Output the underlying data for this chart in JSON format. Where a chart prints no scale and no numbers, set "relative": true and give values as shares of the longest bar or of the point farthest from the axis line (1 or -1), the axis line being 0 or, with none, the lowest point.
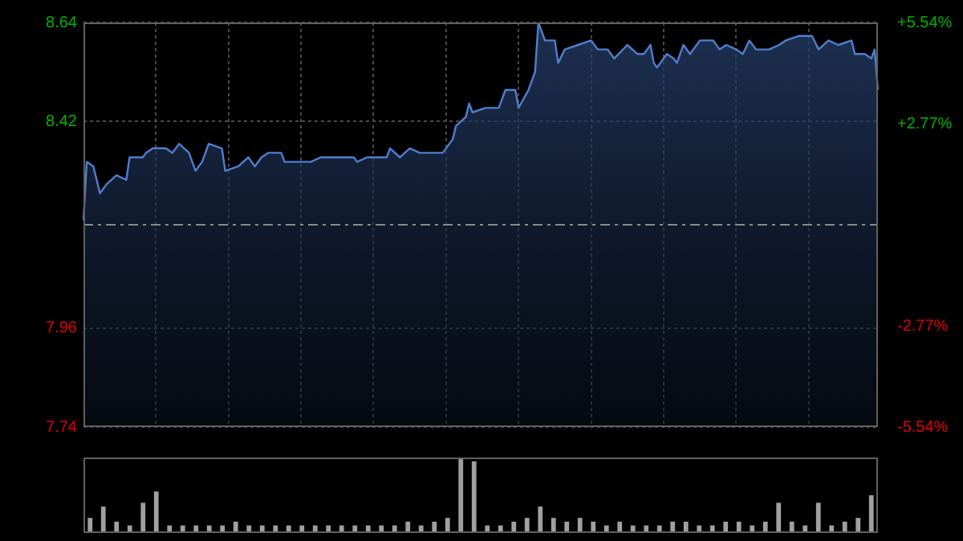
{
  "chart_data": [
    {
      "type": "area",
      "color": "#4f7fcf",
      "categories": [
        null,
        null,
        null,
        null,
        null,
        null,
        null,
        null,
        null,
        null,
        null,
        null,
        null,
        null,
        null,
        null,
        null,
        null,
        null,
        null,
        null,
        null,
        null,
        null,
        null,
        null,
        null,
        null,
        null,
        null,
        null,
        null,
        null,
        null,
        null,
        null,
        null,
        null,
        null,
        null,
        null,
        null,
        null,
        null,
        null,
        null,
        null,
        null,
        null,
        null,
        null,
        null,
        null,
        null,
        null,
        null,
        null,
        null,
        null,
        null,
        null,
        null,
        null,
        null,
        null,
        null,
        null,
        null,
        null,
        null,
        null,
        null,
        null,
        null,
        null,
        null,
        null,
        null,
        null,
        null,
        null,
        null,
        null,
        null,
        null,
        null,
        null,
        null,
        null,
        null,
        null,
        null,
        null,
        null,
        null,
        null,
        null,
        null,
        null,
        null,
        null,
        null,
        null,
        null,
        null,
        null,
        null,
        null,
        null,
        null,
        null,
        null,
        null,
        null,
        null,
        null,
        null,
        null,
        null,
        null,
        null,
        null,
        null,
        null,
        null,
        null,
        null,
        null,
        null,
        null,
        null,
        null,
        null,
        null,
        null,
        null,
        null,
        null,
        null,
        null,
        null,
        null,
        null,
        null,
        null,
        null,
        null,
        null,
        null,
        null,
        null,
        null,
        null,
        null,
        null,
        null,
        null,
        null,
        null,
        null,
        null,
        null,
        null,
        null,
        null,
        null,
        null,
        null,
        null,
        null,
        null,
        null,
        null,
        null,
        null,
        null,
        null,
        null,
        null,
        null,
        null,
        null,
        null,
        null,
        null,
        null,
        null,
        null,
        null,
        null,
        null,
        null,
        null,
        null,
        null,
        null,
        null,
        null,
        null,
        null,
        null,
        null,
        null,
        null,
        null,
        null,
        null,
        null,
        null,
        null,
        null,
        null,
        null,
        null,
        null,
        null,
        null,
        null,
        null,
        null,
        null,
        null,
        null,
        null,
        null,
        null,
        null,
        null,
        null,
        null,
        null,
        null,
        null,
        null,
        null,
        null,
        null,
        null,
        null,
        null,
        null,
        null
      ],
      "values": [
        8.2,
        8.33,
        null,
        8.32,
        null,
        8.26,
        null,
        8.28,
        null,
        null,
        8.3,
        null,
        null,
        8.29,
        8.34,
        null,
        null,
        null,
        8.34,
        8.35,
        null,
        8.36,
        null,
        null,
        null,
        8.36,
        null,
        8.35,
        null,
        8.37,
        null,
        null,
        8.35,
        null,
        8.31,
        null,
        8.33,
        null,
        8.37,
        null,
        null,
        null,
        8.36,
        8.31,
        null,
        null,
        null,
        8.32,
        null,
        null,
        8.34,
        null,
        8.32,
        null,
        8.34,
        null,
        8.35,
        null,
        null,
        null,
        8.35,
        8.33,
        null,
        null,
        null,
        8.33,
        null,
        null,
        null,
        8.33,
        null,
        null,
        8.34,
        null,
        null,
        null,
        null,
        8.34,
        null,
        null,
        null,
        null,
        8.34,
        8.33,
        null,
        null,
        8.34,
        null,
        null,
        null,
        null,
        null,
        8.34,
        8.36,
        null,
        null,
        8.34,
        null,
        null,
        8.36,
        null,
        null,
        8.35,
        null,
        null,
        null,
        null,
        null,
        null,
        8.35,
        null,
        null,
        8.38,
        8.41,
        null,
        null,
        8.43,
        8.46,
        8.44,
        null,
        null,
        null,
        8.45,
        null,
        null,
        null,
        8.45,
        null,
        8.49,
        null,
        null,
        8.49,
        8.45,
        null,
        null,
        8.49,
        null,
        8.53,
        8.64,
        null,
        8.6,
        null,
        null,
        8.6,
        8.55,
        null,
        8.58,
        null,
        null,
        null,
        8.59,
        null,
        null,
        null,
        8.6,
        null,
        8.58,
        null,
        null,
        8.58,
        null,
        8.56,
        null,
        null,
        null,
        8.59,
        null,
        null,
        8.57,
        null,
        8.57,
        null,
        8.59,
        8.55,
        8.54,
        null,
        null,
        8.57,
        null,
        8.56,
        8.55,
        null,
        8.59,
        null,
        8.57,
        null,
        null,
        8.6,
        null,
        null,
        null,
        8.6,
        null,
        8.58,
        null,
        8.59,
        null,
        null,
        8.58,
        null,
        8.57,
        null,
        8.6,
        null,
        8.58,
        null,
        null,
        null,
        8.58,
        null,
        null,
        8.59,
        null,
        8.6,
        null,
        null,
        null,
        8.61,
        null,
        null,
        null,
        8.61,
        null,
        8.58,
        null,
        null,
        8.6,
        null,
        null,
        8.59,
        null,
        null,
        null,
        8.6,
        8.57,
        null,
        null,
        8.57,
        null,
        8.56,
        8.58,
        8.49
      ],
      "ylim": [
        7.74,
        8.64
      ],
      "yticks": [
        7.74,
        7.96,
        8.42,
        8.64
      ],
      "y2lim": [
        -5.54,
        5.54
      ],
      "y2ticks": [
        {
          "value": -5.54,
          "label": "-5.54%"
        },
        {
          "value": -2.77,
          "label": "-2.77%"
        },
        {
          "value": 2.77,
          "label": "+2.77%"
        },
        {
          "value": 5.54,
          "label": "+5.54%"
        }
      ],
      "ref_lines": [
        {
          "axis": "y",
          "value": 8.19,
          "color": "#8a8a8a",
          "line_style": "dashed"
        }
      ],
      "grid": true,
      "legend": false,
      "marker": "none",
      "line_style": "solid"
    },
    {
      "type": "bar",
      "relative": true,
      "color": "#a0a0a0",
      "categories": [
        null,
        null,
        null,
        null,
        null,
        null,
        null,
        null,
        null,
        null,
        null,
        null,
        null,
        null,
        null,
        null,
        null,
        null,
        null,
        null,
        null,
        null,
        null,
        null,
        null,
        null,
        null,
        null,
        null,
        null,
        null,
        null,
        null,
        null,
        null,
        null,
        null,
        null,
        null,
        null,
        null,
        null,
        null,
        null,
        null,
        null,
        null,
        null,
        null,
        null,
        null,
        null,
        null,
        null,
        null,
        null,
        null,
        null,
        null,
        null
      ],
      "values": [
        0.2,
        0.35,
        0.15,
        0.1,
        0.4,
        0.55,
        0.1,
        0.1,
        0.1,
        0.1,
        0.1,
        0.15,
        0.1,
        0.1,
        0.1,
        0.1,
        0.1,
        0.1,
        0.1,
        0.1,
        0.1,
        0.1,
        0.1,
        0.1,
        0.15,
        0.1,
        0.15,
        0.2,
        1,
        0.95,
        0.1,
        0.1,
        0.15,
        0.2,
        0.35,
        0.2,
        0.15,
        0.2,
        0.15,
        0.1,
        0.15,
        0.1,
        0.1,
        0.1,
        0.15,
        0.15,
        0.1,
        0.1,
        0.15,
        0.15,
        0.1,
        0.15,
        0.4,
        0.15,
        0.1,
        0.4,
        0.1,
        0.15,
        0.2,
        0.5
      ],
      "legend": false
    }
  ]
}
